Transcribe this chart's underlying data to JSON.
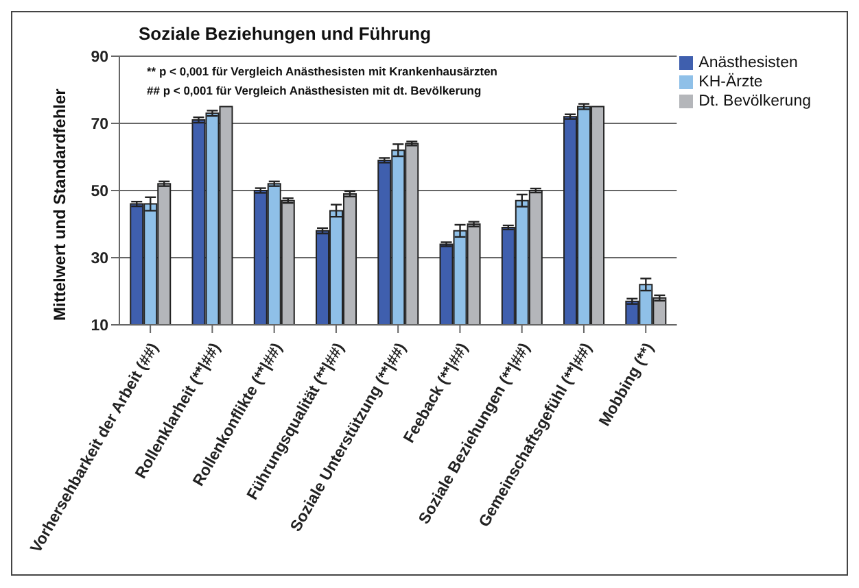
{
  "chart_data": {
    "type": "bar",
    "title": "Soziale Beziehungen und Führung",
    "ylabel": "Mittelwert und Standardfehler",
    "annotations": [
      "** p < 0,001 für Vergleich Anästhesisten mit Krankenhausärzten",
      "## p < 0,001 für Vergleich Anästhesisten mit dt. Bevölkerung"
    ],
    "categories": [
      "Vorhersehbarkeit  der Arbeit (##)",
      "Rollenklarheit (**|##)",
      "Rollenkonflikte (**|##)",
      "Führungsqualität (**|##)",
      "Soziale Unterstützung (**|##)",
      "Feeback (**|##)",
      "Soziale Beziehungen (**|##)",
      "Gemeinschaftsgefühl (**|##)",
      "Mobbing (**)"
    ],
    "series": [
      {
        "name": "Anästhesisten",
        "color": "#3f5fae",
        "values": [
          46,
          71,
          50,
          38,
          59,
          34,
          39,
          72,
          17
        ],
        "errors": [
          0.7,
          0.8,
          0.7,
          0.8,
          0.7,
          0.6,
          0.6,
          0.7,
          0.8
        ]
      },
      {
        "name": "KH-Ärzte",
        "color": "#8fc0e8",
        "values": [
          46,
          73,
          52,
          44,
          62,
          38,
          47,
          75,
          22
        ],
        "errors": [
          2,
          0.8,
          0.7,
          1.8,
          1.8,
          1.8,
          1.8,
          0.8,
          1.8
        ]
      },
      {
        "name": "Dt. Bevölkerung",
        "color": "#b4b6ba",
        "values": [
          52,
          75,
          47,
          49,
          64,
          40,
          50,
          75,
          18
        ],
        "errors": [
          0.7,
          null,
          0.7,
          0.8,
          0.6,
          0.7,
          0.6,
          null,
          0.8
        ]
      }
    ],
    "ylim": [
      10,
      90
    ],
    "yticks": [
      10,
      30,
      50,
      70,
      90
    ],
    "grid": "y",
    "legend": "top right"
  }
}
